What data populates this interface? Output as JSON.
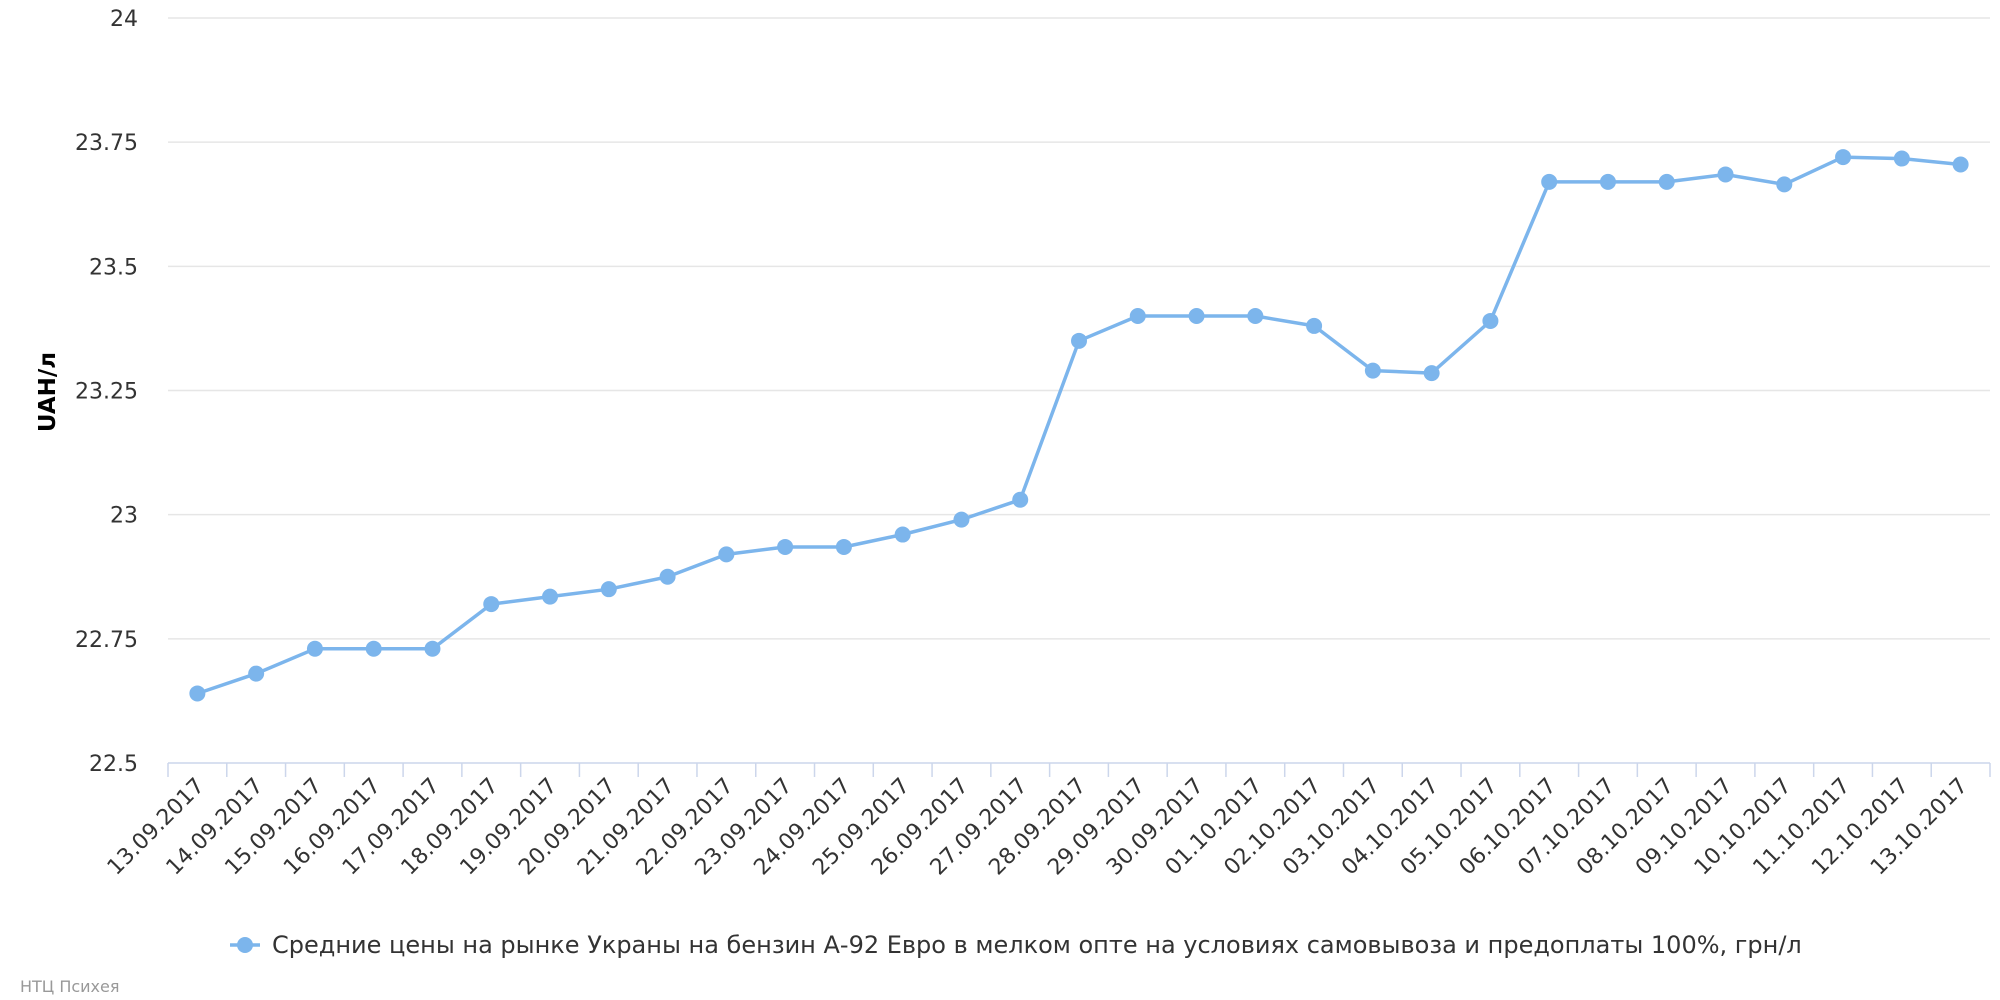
{
  "colors": {
    "series": "#7cb5ec",
    "grid": "#e6e6e6",
    "axis": "#ccd6eb"
  },
  "credits": "НТЦ Психея",
  "chart_data": {
    "type": "line",
    "title": "",
    "xlabel": "",
    "ylabel": "UAH/л",
    "ylim": [
      22.5,
      24
    ],
    "yticks": [
      "22.5",
      "22.75",
      "23",
      "23.25",
      "23.5",
      "23.75",
      "24"
    ],
    "grid": true,
    "legend_position": "bottom-center",
    "categories": [
      "13.09.2017",
      "14.09.2017",
      "15.09.2017",
      "16.09.2017",
      "17.09.2017",
      "18.09.2017",
      "19.09.2017",
      "20.09.2017",
      "21.09.2017",
      "22.09.2017",
      "23.09.2017",
      "24.09.2017",
      "25.09.2017",
      "26.09.2017",
      "27.09.2017",
      "28.09.2017",
      "29.09.2017",
      "30.09.2017",
      "01.10.2017",
      "02.10.2017",
      "03.10.2017",
      "04.10.2017",
      "05.10.2017",
      "06.10.2017",
      "07.10.2017",
      "08.10.2017",
      "09.10.2017",
      "10.10.2017",
      "11.10.2017",
      "12.10.2017",
      "13.10.2017"
    ],
    "series": [
      {
        "name": "Средние цены на рынке Украны на бензин А-92 Евро в мелком опте на условиях самовывоза и предоплаты 100%, грн/л",
        "values": [
          22.64,
          22.68,
          22.73,
          22.73,
          22.73,
          22.82,
          22.835,
          22.85,
          22.875,
          22.92,
          22.935,
          22.935,
          22.96,
          22.99,
          23.03,
          23.35,
          23.4,
          23.4,
          23.4,
          23.38,
          23.29,
          23.285,
          23.39,
          23.67,
          23.67,
          23.67,
          23.685,
          23.665,
          23.72,
          23.717,
          23.705
        ]
      }
    ]
  }
}
